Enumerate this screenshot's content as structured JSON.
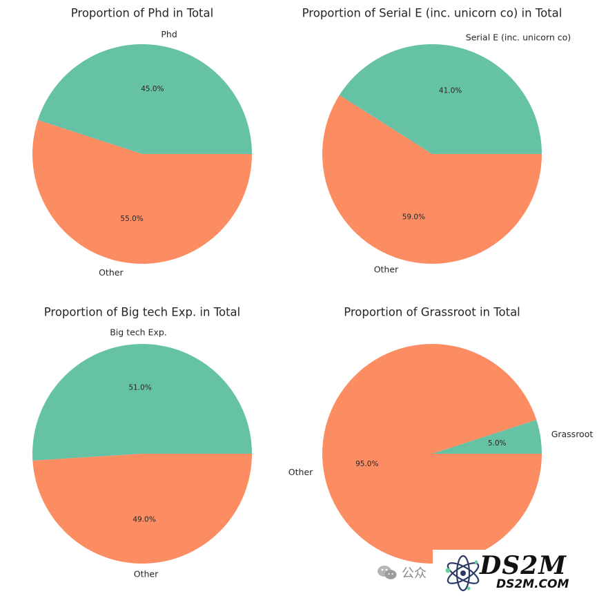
{
  "colors": {
    "primary": "#66c2a5",
    "other": "#fc8d62"
  },
  "chart_data": [
    {
      "type": "pie",
      "title": "Proportion of Phd in Total",
      "slices": [
        {
          "label": "Phd",
          "value": 45.0,
          "pct_label": "45.0%",
          "color": "#66c2a5"
        },
        {
          "label": "Other",
          "value": 55.0,
          "pct_label": "55.0%",
          "color": "#fc8d62"
        }
      ]
    },
    {
      "type": "pie",
      "title": "Proportion of Serial E (inc. unicorn co) in Total",
      "slices": [
        {
          "label": "Serial E (inc. unicorn co)",
          "value": 41.0,
          "pct_label": "41.0%",
          "color": "#66c2a5"
        },
        {
          "label": "Other",
          "value": 59.0,
          "pct_label": "59.0%",
          "color": "#fc8d62"
        }
      ]
    },
    {
      "type": "pie",
      "title": "Proportion of Big tech Exp. in Total",
      "slices": [
        {
          "label": "Big tech Exp.",
          "value": 51.0,
          "pct_label": "51.0%",
          "color": "#66c2a5"
        },
        {
          "label": "Other",
          "value": 49.0,
          "pct_label": "49.0%",
          "color": "#fc8d62"
        }
      ]
    },
    {
      "type": "pie",
      "title": "Proportion of Grassroot in Total",
      "slices": [
        {
          "label": "Grassroot",
          "value": 5.0,
          "pct_label": "5.0%",
          "color": "#66c2a5"
        },
        {
          "label": "Other",
          "value": 95.0,
          "pct_label": "95.0%",
          "color": "#fc8d62"
        }
      ]
    }
  ],
  "watermark": {
    "wechat_icon": "wechat-icon",
    "wechat_text": "公众",
    "logo_text": "DS2M",
    "logo_domain": "DS2M.COM"
  }
}
